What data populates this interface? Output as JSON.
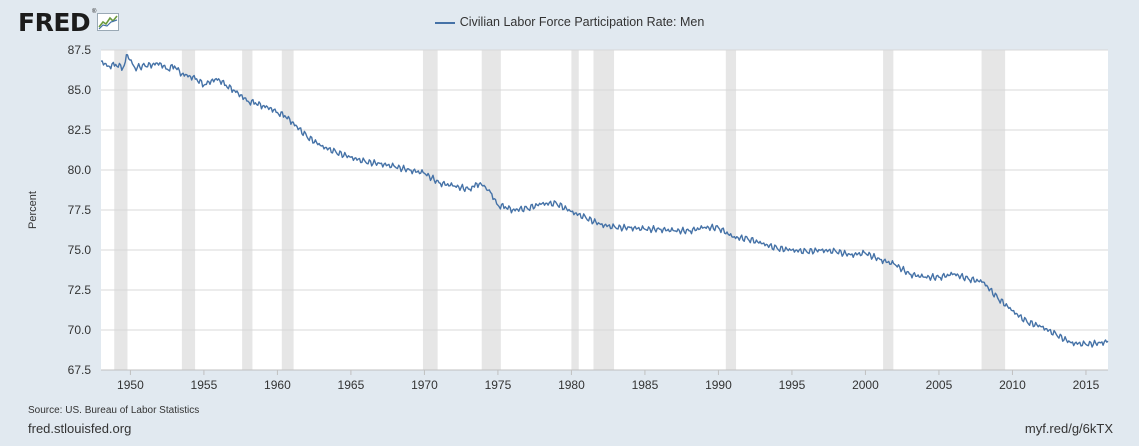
{
  "brand": {
    "logo_text": "FRED",
    "registered_mark": "®",
    "logo_icon": "line-chart-icon"
  },
  "footer": {
    "source": "Source: US. Bureau of Labor Statistics",
    "site": "fred.stlouisfed.org",
    "short_link": "myf.red/g/6kTX"
  },
  "chart_data": {
    "type": "line",
    "title": "",
    "ylabel": "Percent",
    "xlabel": "",
    "ylim": [
      67.5,
      87.5
    ],
    "xlim": [
      1948.0,
      2016.5
    ],
    "y_ticks": [
      "67.5",
      "70.0",
      "72.5",
      "75.0",
      "77.5",
      "80.0",
      "82.5",
      "85.0",
      "87.5"
    ],
    "x_ticks": [
      "1950",
      "1955",
      "1960",
      "1965",
      "1970",
      "1975",
      "1980",
      "1985",
      "1990",
      "1995",
      "2000",
      "2005",
      "2010",
      "2015"
    ],
    "grid": "horizontal",
    "legend": "top-center",
    "colors": {
      "series": "#4572a7",
      "recession": "#e6e6e6",
      "grid": "#d8d8d8"
    },
    "recessions": [
      [
        1948.9,
        1949.8
      ],
      [
        1953.5,
        1954.4
      ],
      [
        1957.6,
        1958.3
      ],
      [
        1960.3,
        1961.1
      ],
      [
        1969.9,
        1970.9
      ],
      [
        1973.9,
        1975.2
      ],
      [
        1980.0,
        1980.5
      ],
      [
        1981.5,
        1982.9
      ],
      [
        1990.5,
        1991.2
      ],
      [
        2001.2,
        2001.9
      ],
      [
        2007.9,
        2009.5
      ]
    ],
    "series": [
      {
        "name": "Civilian Labor Force Participation Rate: Men",
        "x": [
          1948.0,
          1948.5,
          1949.0,
          1949.5,
          1949.8,
          1950.3,
          1951.0,
          1951.5,
          1952.0,
          1952.5,
          1953.0,
          1953.5,
          1954.0,
          1954.5,
          1955.0,
          1955.5,
          1956.0,
          1956.5,
          1957.0,
          1957.5,
          1958.0,
          1958.5,
          1959.0,
          1959.5,
          1960.0,
          1960.5,
          1961.0,
          1962.0,
          1963.0,
          1964.0,
          1965.0,
          1966.0,
          1967.0,
          1968.0,
          1969.0,
          1970.0,
          1971.0,
          1972.0,
          1973.0,
          1973.8,
          1974.5,
          1975.0,
          1975.5,
          1976.0,
          1977.0,
          1978.0,
          1979.0,
          1980.0,
          1981.0,
          1982.0,
          1983.0,
          1984.0,
          1985.0,
          1986.0,
          1987.0,
          1988.0,
          1989.0,
          1990.0,
          1991.0,
          1992.0,
          1993.0,
          1994.0,
          1995.0,
          1996.0,
          1997.0,
          1998.0,
          1999.0,
          2000.0,
          2001.0,
          2002.0,
          2003.0,
          2004.0,
          2005.0,
          2006.0,
          2007.0,
          2008.0,
          2009.0,
          2010.0,
          2011.0,
          2012.0,
          2013.0,
          2014.0,
          2015.0,
          2016.0,
          2016.5
        ],
        "values": [
          86.8,
          86.5,
          86.6,
          86.4,
          87.2,
          86.4,
          86.5,
          86.6,
          86.7,
          86.3,
          86.5,
          86.0,
          85.9,
          85.7,
          85.3,
          85.6,
          85.7,
          85.3,
          85.0,
          84.7,
          84.3,
          84.2,
          84.0,
          83.9,
          83.6,
          83.4,
          83.0,
          82.1,
          81.5,
          81.1,
          80.8,
          80.5,
          80.4,
          80.2,
          80.0,
          79.8,
          79.2,
          79.0,
          78.8,
          79.2,
          78.6,
          77.8,
          77.7,
          77.5,
          77.6,
          77.9,
          77.9,
          77.4,
          77.0,
          76.6,
          76.4,
          76.4,
          76.3,
          76.3,
          76.2,
          76.2,
          76.4,
          76.4,
          75.8,
          75.7,
          75.4,
          75.1,
          75.0,
          74.9,
          75.0,
          74.9,
          74.7,
          74.8,
          74.4,
          74.1,
          73.5,
          73.3,
          73.3,
          73.5,
          73.2,
          73.0,
          72.0,
          71.2,
          70.5,
          70.2,
          69.7,
          69.2,
          69.1,
          69.2,
          69.3
        ]
      }
    ]
  }
}
